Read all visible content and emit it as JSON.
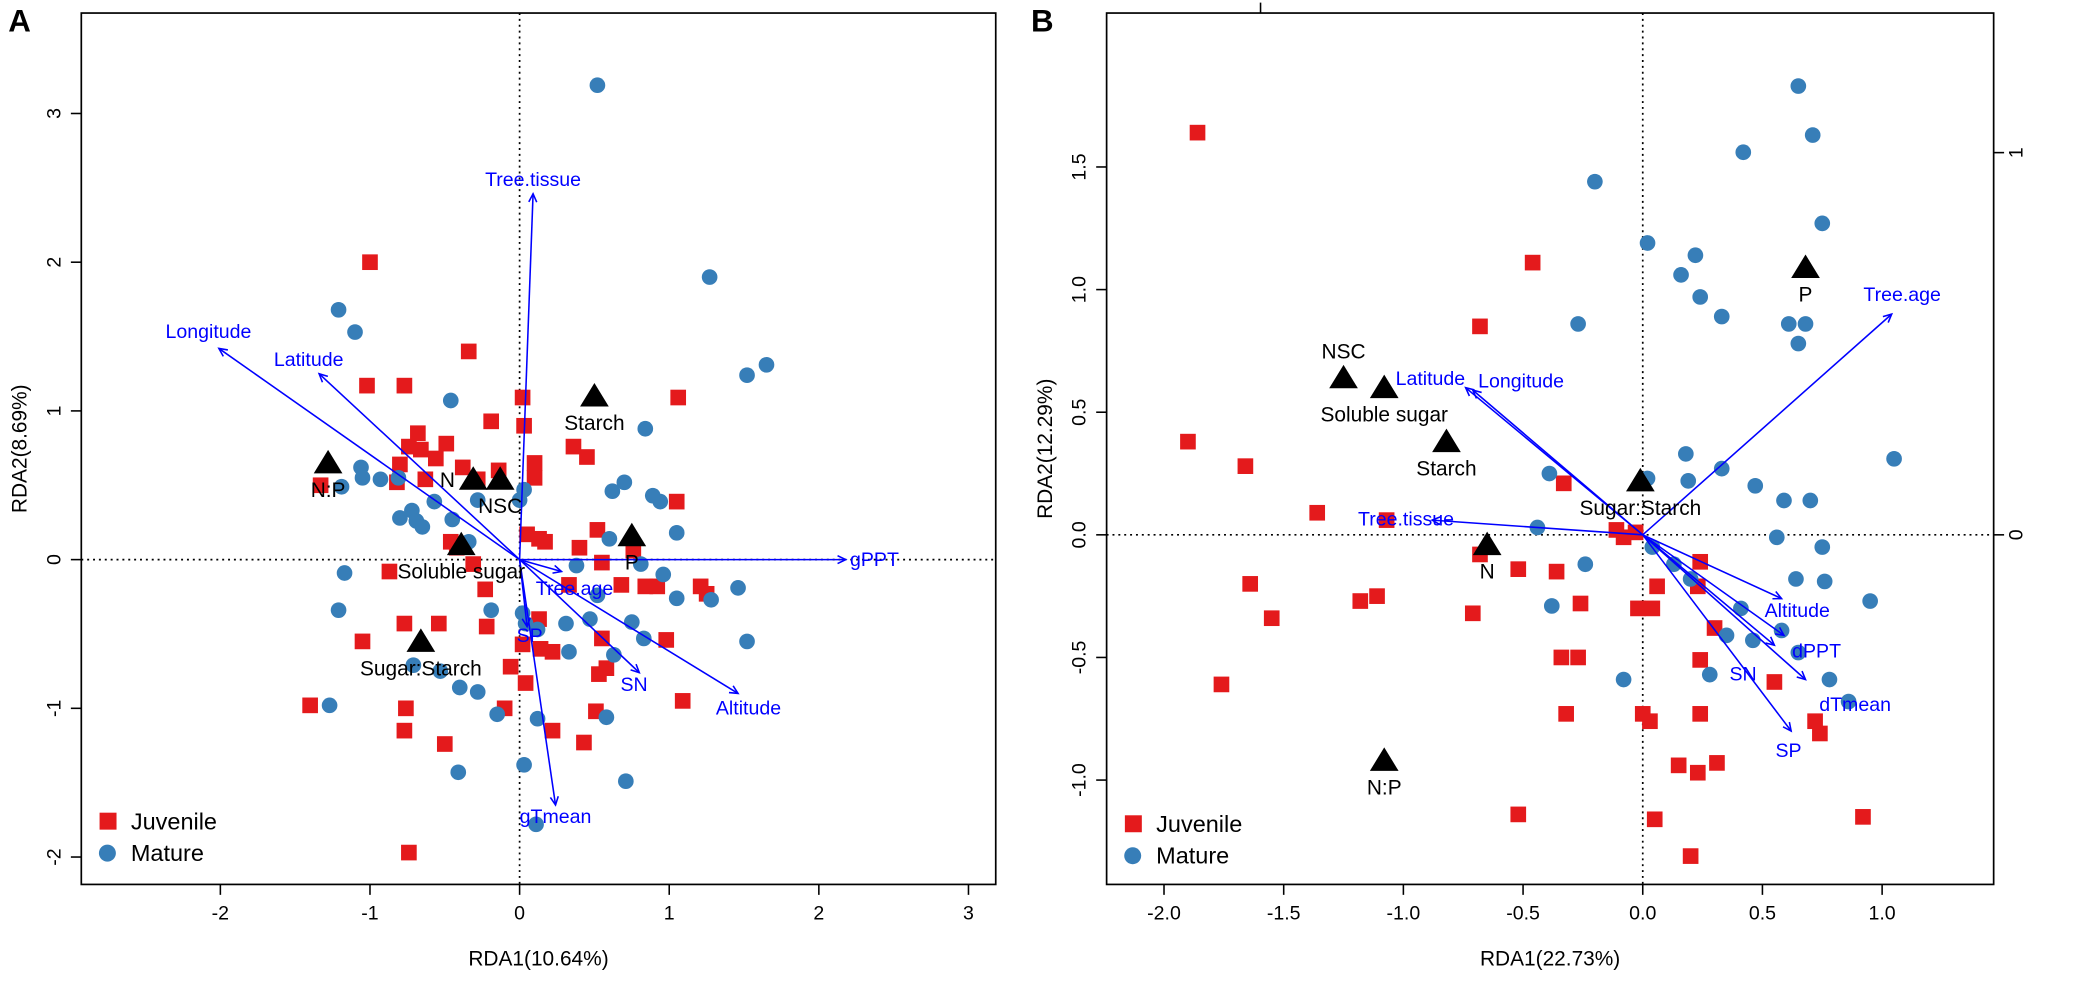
{
  "colors": {
    "juvenile": "#e41a1c",
    "mature": "#377eb8",
    "arrow": "#0000ff",
    "centroid": "#000000"
  },
  "chart_data": [
    {
      "type": "scatter",
      "panel_label": "A",
      "xlabel": "RDA1(10.64%)",
      "ylabel": "RDA2(8.69%)",
      "xlim": [
        -2.9,
        3.2
      ],
      "ylim": [
        -2.2,
        3.67
      ],
      "xticks": [
        -2,
        -1,
        0,
        1,
        2,
        3
      ],
      "yticks": [
        -2,
        -1,
        0,
        1,
        2,
        3
      ],
      "reference_lines": "dotted at x=0 and y=0",
      "legend": {
        "position": "bottom-left",
        "entries": [
          "Juvenile",
          "Mature"
        ]
      },
      "series": [
        {
          "name": "Juvenile",
          "marker": "square",
          "points": [
            [
              -1.0,
              2.0
            ],
            [
              -1.02,
              1.17
            ],
            [
              -0.77,
              1.17
            ],
            [
              -0.34,
              1.4
            ],
            [
              0.02,
              1.09
            ],
            [
              1.06,
              1.09
            ],
            [
              0.03,
              0.9
            ],
            [
              -0.19,
              0.93
            ],
            [
              -0.68,
              0.85
            ],
            [
              -0.74,
              0.76
            ],
            [
              -0.66,
              0.74
            ],
            [
              -0.49,
              0.78
            ],
            [
              -0.56,
              0.68
            ],
            [
              -0.38,
              0.62
            ],
            [
              -0.63,
              0.54
            ],
            [
              -0.8,
              0.64
            ],
            [
              -0.82,
              0.52
            ],
            [
              -0.28,
              0.54
            ],
            [
              -0.14,
              0.6
            ],
            [
              0.1,
              0.65
            ],
            [
              0.36,
              0.76
            ],
            [
              0.45,
              0.69
            ],
            [
              0.1,
              0.55
            ],
            [
              -1.33,
              0.5
            ],
            [
              1.05,
              0.39
            ],
            [
              0.52,
              0.2
            ],
            [
              -0.42,
              0.08
            ],
            [
              -0.46,
              0.12
            ],
            [
              0.05,
              0.17
            ],
            [
              0.13,
              0.14
            ],
            [
              0.17,
              0.12
            ],
            [
              0.4,
              0.08
            ],
            [
              0.55,
              -0.02
            ],
            [
              -0.87,
              -0.08
            ],
            [
              -0.31,
              -0.03
            ],
            [
              0.33,
              -0.17
            ],
            [
              0.68,
              -0.17
            ],
            [
              0.84,
              -0.18
            ],
            [
              0.92,
              -0.18
            ],
            [
              1.21,
              -0.18
            ],
            [
              1.25,
              -0.23
            ],
            [
              0.76,
              0.06
            ],
            [
              -0.23,
              -0.2
            ],
            [
              0.13,
              -0.4
            ],
            [
              -0.22,
              -0.45
            ],
            [
              -0.54,
              -0.43
            ],
            [
              -0.77,
              -0.43
            ],
            [
              -1.05,
              -0.55
            ],
            [
              0.02,
              -0.57
            ],
            [
              0.14,
              -0.6
            ],
            [
              0.22,
              -0.62
            ],
            [
              -0.06,
              -0.72
            ],
            [
              0.55,
              -0.53
            ],
            [
              0.58,
              -0.73
            ],
            [
              0.53,
              -0.77
            ],
            [
              0.98,
              -0.54
            ],
            [
              0.04,
              -0.83
            ],
            [
              1.09,
              -0.95
            ],
            [
              -0.76,
              -1.0
            ],
            [
              0.51,
              -1.02
            ],
            [
              -0.1,
              -1.0
            ],
            [
              -0.5,
              -1.24
            ],
            [
              0.22,
              -1.15
            ],
            [
              -0.77,
              -1.15
            ],
            [
              0.43,
              -1.23
            ],
            [
              -1.4,
              -0.98
            ],
            [
              -0.74,
              -1.97
            ]
          ]
        },
        {
          "name": "Mature",
          "marker": "circle",
          "points": [
            [
              0.52,
              3.19
            ],
            [
              1.27,
              1.9
            ],
            [
              -1.21,
              1.68
            ],
            [
              -1.1,
              1.53
            ],
            [
              1.65,
              1.31
            ],
            [
              1.52,
              1.24
            ],
            [
              -0.46,
              1.07
            ],
            [
              0.84,
              0.88
            ],
            [
              -1.06,
              0.62
            ],
            [
              -1.05,
              0.55
            ],
            [
              -0.93,
              0.54
            ],
            [
              -1.19,
              0.49
            ],
            [
              -0.81,
              0.55
            ],
            [
              -0.57,
              0.39
            ],
            [
              -0.72,
              0.33
            ],
            [
              -0.69,
              0.26
            ],
            [
              -0.8,
              0.28
            ],
            [
              -0.65,
              0.22
            ],
            [
              -0.28,
              0.4
            ],
            [
              -0.45,
              0.27
            ],
            [
              0.0,
              0.4
            ],
            [
              0.03,
              0.47
            ],
            [
              0.94,
              0.39
            ],
            [
              0.89,
              0.43
            ],
            [
              0.62,
              0.46
            ],
            [
              0.7,
              0.52
            ],
            [
              -0.34,
              0.12
            ],
            [
              0.6,
              0.14
            ],
            [
              -1.17,
              -0.09
            ],
            [
              1.05,
              0.18
            ],
            [
              0.38,
              -0.04
            ],
            [
              0.52,
              -0.24
            ],
            [
              0.81,
              -0.03
            ],
            [
              0.96,
              -0.1
            ],
            [
              1.05,
              -0.26
            ],
            [
              1.28,
              -0.27
            ],
            [
              1.46,
              -0.19
            ],
            [
              -1.21,
              -0.34
            ],
            [
              -0.19,
              -0.34
            ],
            [
              0.02,
              -0.36
            ],
            [
              0.04,
              -0.43
            ],
            [
              0.12,
              -0.47
            ],
            [
              0.31,
              -0.43
            ],
            [
              0.47,
              -0.4
            ],
            [
              0.75,
              -0.42
            ],
            [
              0.83,
              -0.53
            ],
            [
              1.52,
              -0.55
            ],
            [
              0.33,
              -0.62
            ],
            [
              0.63,
              -0.64
            ],
            [
              -0.71,
              -0.71
            ],
            [
              -0.4,
              -0.86
            ],
            [
              -0.28,
              -0.89
            ],
            [
              -0.15,
              -1.04
            ],
            [
              0.12,
              -1.07
            ],
            [
              -1.27,
              -0.98
            ],
            [
              -0.41,
              -1.43
            ],
            [
              0.03,
              -1.38
            ],
            [
              0.71,
              -1.49
            ],
            [
              0.11,
              -1.78
            ],
            [
              0.58,
              -1.06
            ],
            [
              -0.53,
              -0.75
            ]
          ]
        }
      ],
      "env_vectors": [
        {
          "label": "Tree.tissue",
          "x": 0.09,
          "y": 2.46
        },
        {
          "label": "Longitude",
          "x": -2.01,
          "y": 1.42
        },
        {
          "label": "Latitude",
          "x": -1.34,
          "y": 1.25
        },
        {
          "label": "gPPT",
          "x": 2.18,
          "y": 0.0
        },
        {
          "label": "Tree.age",
          "x": 0.28,
          "y": -0.08
        },
        {
          "label": "SP",
          "x": 0.05,
          "y": -0.45
        },
        {
          "label": "SN",
          "x": 0.8,
          "y": -0.76
        },
        {
          "label": "Altitude",
          "x": 1.46,
          "y": -0.9
        },
        {
          "label": "gTmean",
          "x": 0.24,
          "y": -1.65
        }
      ],
      "centroids": [
        {
          "label": "N:P",
          "x": -1.28,
          "y": 0.65
        },
        {
          "label": "N",
          "x": -0.31,
          "y": 0.54
        },
        {
          "label": "NSC",
          "x": -0.13,
          "y": 0.54
        },
        {
          "label": "Starch",
          "x": 0.5,
          "y": 1.1
        },
        {
          "label": "P",
          "x": 0.75,
          "y": 0.16
        },
        {
          "label": "Soluble sugar",
          "x": -0.39,
          "y": 0.1
        },
        {
          "label": "Sugar:Starch",
          "x": -0.66,
          "y": -0.55
        }
      ]
    },
    {
      "type": "scatter",
      "panel_label": "B",
      "xlabel": "RDA1(22.73%)",
      "ylabel": "RDA2(12.29%)",
      "xlim": [
        -2.2,
        1.5
      ],
      "ylim": [
        -1.42,
        2.13
      ],
      "xticks": [
        -2.0,
        -1.5,
        -1.0,
        -0.5,
        0.0,
        0.5,
        1.0
      ],
      "yticks": [
        -1.0,
        -0.5,
        0.0,
        0.5,
        1.0,
        1.5
      ],
      "right_axis_ticks": [
        "0",
        "1"
      ],
      "reference_lines": "dotted at x=0 and y=0",
      "legend": {
        "position": "bottom-left",
        "entries": [
          "Juvenile",
          "Mature"
        ]
      },
      "series": [
        {
          "name": "Juvenile",
          "marker": "square",
          "points": [
            [
              -1.86,
              1.64
            ],
            [
              -0.46,
              1.11
            ],
            [
              -0.68,
              0.85
            ],
            [
              -1.9,
              0.38
            ],
            [
              -1.66,
              0.28
            ],
            [
              -1.36,
              0.09
            ],
            [
              -1.07,
              0.06
            ],
            [
              -0.33,
              0.21
            ],
            [
              -0.11,
              0.02
            ],
            [
              -0.03,
              0.01
            ],
            [
              -1.64,
              -0.2
            ],
            [
              -1.55,
              -0.34
            ],
            [
              -1.18,
              -0.27
            ],
            [
              -1.11,
              -0.25
            ],
            [
              -0.71,
              -0.32
            ],
            [
              -0.68,
              -0.08
            ],
            [
              -0.52,
              -0.14
            ],
            [
              -0.36,
              -0.15
            ],
            [
              -0.26,
              -0.28
            ],
            [
              -0.02,
              -0.3
            ],
            [
              0.04,
              -0.3
            ],
            [
              0.06,
              -0.21
            ],
            [
              0.24,
              -0.11
            ],
            [
              0.23,
              -0.21
            ],
            [
              0.3,
              -0.38
            ],
            [
              -0.34,
              -0.5
            ],
            [
              -0.27,
              -0.5
            ],
            [
              0.24,
              -0.51
            ],
            [
              0.55,
              -0.6
            ],
            [
              -1.76,
              -0.61
            ],
            [
              -0.32,
              -0.73
            ],
            [
              0.0,
              -0.73
            ],
            [
              0.03,
              -0.76
            ],
            [
              0.24,
              -0.73
            ],
            [
              0.72,
              -0.76
            ],
            [
              0.74,
              -0.81
            ],
            [
              0.15,
              -0.94
            ],
            [
              0.23,
              -0.97
            ],
            [
              0.31,
              -0.93
            ],
            [
              -0.52,
              -1.14
            ],
            [
              0.05,
              -1.16
            ],
            [
              0.92,
              -1.15
            ],
            [
              0.2,
              -1.31
            ],
            [
              -0.08,
              -0.01
            ]
          ]
        },
        {
          "name": "Mature",
          "marker": "circle",
          "points": [
            [
              0.65,
              1.83
            ],
            [
              0.71,
              1.63
            ],
            [
              0.42,
              1.56
            ],
            [
              -0.2,
              1.44
            ],
            [
              0.75,
              1.27
            ],
            [
              0.02,
              1.19
            ],
            [
              0.22,
              1.14
            ],
            [
              0.16,
              1.06
            ],
            [
              0.24,
              0.97
            ],
            [
              0.33,
              0.89
            ],
            [
              -0.27,
              0.86
            ],
            [
              0.61,
              0.86
            ],
            [
              0.65,
              0.78
            ],
            [
              1.05,
              0.31
            ],
            [
              0.18,
              0.33
            ],
            [
              0.33,
              0.27
            ],
            [
              -0.39,
              0.25
            ],
            [
              0.02,
              0.23
            ],
            [
              0.47,
              0.2
            ],
            [
              0.19,
              0.22
            ],
            [
              0.59,
              0.14
            ],
            [
              0.7,
              0.14
            ],
            [
              -0.44,
              0.03
            ],
            [
              0.56,
              -0.01
            ],
            [
              0.75,
              -0.05
            ],
            [
              0.04,
              -0.05
            ],
            [
              0.13,
              -0.12
            ],
            [
              -0.24,
              -0.12
            ],
            [
              0.2,
              -0.18
            ],
            [
              0.64,
              -0.18
            ],
            [
              0.76,
              -0.19
            ],
            [
              0.41,
              -0.3
            ],
            [
              -0.38,
              -0.29
            ],
            [
              0.46,
              -0.43
            ],
            [
              0.58,
              -0.39
            ],
            [
              0.65,
              -0.48
            ],
            [
              0.28,
              -0.57
            ],
            [
              0.78,
              -0.59
            ],
            [
              0.95,
              -0.27
            ],
            [
              0.86,
              -0.68
            ],
            [
              -0.08,
              -0.59
            ],
            [
              0.35,
              -0.41
            ],
            [
              0.68,
              0.86
            ]
          ]
        }
      ],
      "env_vectors": [
        {
          "label": "Tree.age",
          "x": 1.04,
          "y": 0.9
        },
        {
          "label": "Latitude",
          "x": -0.74,
          "y": 0.6
        },
        {
          "label": "Longitude",
          "x": -0.71,
          "y": 0.59
        },
        {
          "label": "Tree.tissue",
          "x": -0.88,
          "y": 0.06
        },
        {
          "label": "Altitude",
          "x": 0.58,
          "y": -0.26
        },
        {
          "label": "dPPT",
          "x": 0.59,
          "y": -0.41
        },
        {
          "label": "SN",
          "x": 0.55,
          "y": -0.45
        },
        {
          "label": "dTmean",
          "x": 0.68,
          "y": -0.59
        },
        {
          "label": "SP",
          "x": 0.62,
          "y": -0.8
        }
      ],
      "centroids": [
        {
          "label": "NSC",
          "x": -1.25,
          "y": 0.64
        },
        {
          "label": "Soluble sugar",
          "x": -1.08,
          "y": 0.6
        },
        {
          "label": "Starch",
          "x": -0.82,
          "y": 0.38
        },
        {
          "label": "Sugar:Starch",
          "x": -0.01,
          "y": 0.22
        },
        {
          "label": "N",
          "x": -0.65,
          "y": -0.04
        },
        {
          "label": "P",
          "x": 0.68,
          "y": 1.09
        },
        {
          "label": "N:P",
          "x": -1.08,
          "y": -0.92
        }
      ]
    }
  ]
}
